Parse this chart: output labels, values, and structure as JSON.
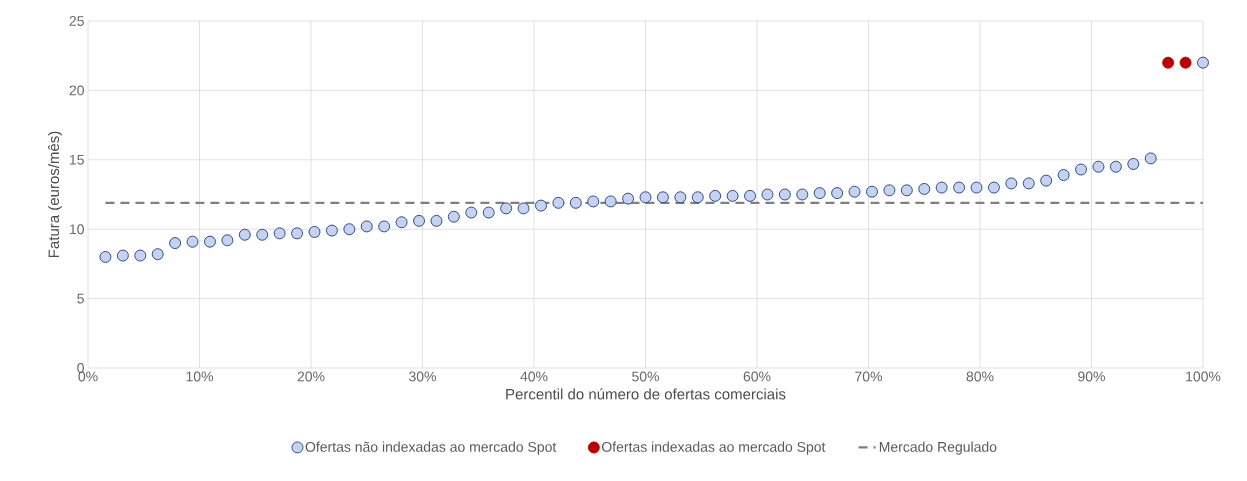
{
  "chart_data": {
    "type": "scatter",
    "xlabel": "Percentil do número de ofertas comerciais",
    "ylabel": "Fatura (euros/mês)",
    "xlim": [
      0,
      100
    ],
    "ylim": [
      0,
      25
    ],
    "xticks": [
      {
        "value": 0,
        "label": "0%"
      },
      {
        "value": 10,
        "label": "10%"
      },
      {
        "value": 20,
        "label": "20%"
      },
      {
        "value": 30,
        "label": "30%"
      },
      {
        "value": 40,
        "label": "40%"
      },
      {
        "value": 50,
        "label": "50%"
      },
      {
        "value": 60,
        "label": "60%"
      },
      {
        "value": 70,
        "label": "70%"
      },
      {
        "value": 80,
        "label": "80%"
      },
      {
        "value": 90,
        "label": "90%"
      },
      {
        "value": 100,
        "label": "100%"
      }
    ],
    "yticks": [
      0,
      5,
      10,
      15,
      20,
      25
    ],
    "grid": true,
    "legend": "bottom",
    "marker": "circle",
    "series": [
      {
        "name": "Ofertas não indexadas ao mercado Spot",
        "color": "#c5d3f0",
        "x": [
          1.5625,
          3.125,
          4.6875,
          6.25,
          7.8125,
          9.375,
          10.9375,
          12.5,
          14.0625,
          15.625,
          17.1875,
          18.75,
          20.3125,
          21.875,
          23.4375,
          25,
          26.5625,
          28.125,
          29.6875,
          31.25,
          32.8125,
          34.375,
          35.9375,
          37.5,
          39.0625,
          40.625,
          42.1875,
          43.75,
          45.3125,
          46.875,
          48.4375,
          50,
          51.5625,
          53.125,
          54.6875,
          56.25,
          57.8125,
          59.375,
          60.9375,
          62.5,
          64.0625,
          65.625,
          67.1875,
          68.75,
          70.3125,
          71.875,
          73.4375,
          75,
          76.5625,
          78.125,
          79.6875,
          81.25,
          82.8125,
          84.375,
          85.9375,
          87.5,
          89.0625,
          90.625,
          92.1875,
          93.75,
          95.3125,
          100
        ],
        "values": [
          8.0,
          8.1,
          8.1,
          8.2,
          9.0,
          9.1,
          9.1,
          9.2,
          9.6,
          9.6,
          9.7,
          9.7,
          9.8,
          9.9,
          10.0,
          10.2,
          10.2,
          10.5,
          10.6,
          10.6,
          10.9,
          11.2,
          11.2,
          11.5,
          11.5,
          11.7,
          11.9,
          11.9,
          12.0,
          12.0,
          12.2,
          12.3,
          12.3,
          12.3,
          12.3,
          12.4,
          12.4,
          12.4,
          12.5,
          12.5,
          12.5,
          12.6,
          12.6,
          12.7,
          12.7,
          12.8,
          12.8,
          12.9,
          13.0,
          13.0,
          13.0,
          13.0,
          13.3,
          13.3,
          13.5,
          13.9,
          14.3,
          14.5,
          14.5,
          14.7,
          15.1,
          22
        ]
      },
      {
        "name": "Ofertas indexadas ao mercado Spot",
        "color": "#c00000",
        "x": [
          96.875,
          98.4375
        ],
        "values": [
          22,
          22
        ]
      },
      {
        "name": "Mercado Regulado",
        "type": "line",
        "color": "#808080",
        "line_style": "dashed",
        "marker": "none",
        "x": [
          1.5625,
          100
        ],
        "values": [
          11.9,
          11.9
        ]
      }
    ]
  }
}
